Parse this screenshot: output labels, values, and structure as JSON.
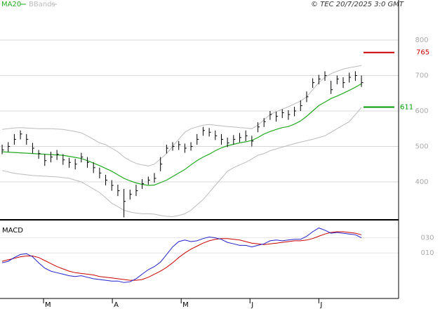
{
  "chart_data": {
    "type": "ohlc",
    "copyright": "© TEC 20/7/2025 3:0 GMT",
    "xlim": [
      -0.35,
      65.1
    ],
    "xticks": [
      {
        "value": 6.8,
        "label": "M"
      },
      {
        "value": 18.1,
        "label": "A"
      },
      {
        "value": 29.4,
        "label": "M"
      },
      {
        "value": 40.7,
        "label": "J"
      },
      {
        "value": 52.0,
        "label": "J"
      }
    ],
    "ylim": [
      293,
      913
    ],
    "yticks": [
      400,
      500,
      600,
      700,
      800
    ],
    "grid": true,
    "bar_color": "#000000",
    "high": [
      505,
      512,
      535,
      545,
      535,
      510,
      490,
      478,
      485,
      490,
      478,
      468,
      465,
      482,
      470,
      455,
      440,
      420,
      405,
      392,
      380,
      378,
      392,
      408,
      415,
      425,
      470,
      505,
      512,
      515,
      508,
      512,
      535,
      555,
      552,
      545,
      535,
      525,
      532,
      538,
      545,
      530,
      568,
      580,
      600,
      598,
      605,
      602,
      612,
      630,
      655,
      692,
      702,
      712,
      685,
      700,
      695,
      708,
      712,
      700
    ],
    "low": [
      478,
      485,
      505,
      520,
      505,
      480,
      465,
      445,
      455,
      462,
      448,
      440,
      435,
      455,
      440,
      425,
      410,
      390,
      375,
      360,
      300,
      350,
      360,
      380,
      392,
      398,
      430,
      480,
      488,
      490,
      482,
      488,
      505,
      530,
      528,
      518,
      505,
      498,
      505,
      512,
      515,
      500,
      540,
      555,
      575,
      570,
      580,
      575,
      585,
      600,
      625,
      665,
      675,
      685,
      648,
      675,
      665,
      680,
      685,
      668
    ],
    "close": [
      490,
      500,
      520,
      535,
      520,
      495,
      480,
      460,
      470,
      478,
      462,
      455,
      450,
      470,
      455,
      440,
      425,
      405,
      390,
      375,
      345,
      365,
      375,
      395,
      405,
      410,
      450,
      495,
      500,
      505,
      495,
      500,
      520,
      545,
      540,
      530,
      520,
      510,
      520,
      525,
      530,
      515,
      555,
      570,
      590,
      585,
      595,
      590,
      600,
      615,
      640,
      680,
      690,
      700,
      660,
      690,
      680,
      695,
      700,
      680
    ],
    "ma": {
      "name": "MA20",
      "color": "#22aa22",
      "values": [
        485,
        484,
        483,
        482,
        481,
        480,
        479,
        478,
        477,
        476,
        475,
        472,
        469,
        466,
        460,
        453,
        446,
        438,
        430,
        420,
        410,
        403,
        397,
        393,
        390,
        391,
        398,
        405,
        415,
        425,
        435,
        448,
        460,
        470,
        478,
        488,
        496,
        502,
        506,
        510,
        513,
        517,
        525,
        535,
        542,
        548,
        553,
        556,
        563,
        572,
        585,
        600,
        615,
        625,
        635,
        642,
        650,
        658,
        667,
        677
      ]
    },
    "bands": {
      "name": "BBands",
      "color": "#bbbbbb",
      "upper": [
        548,
        550,
        552,
        553,
        552,
        551,
        550,
        550,
        550,
        549,
        548,
        545,
        542,
        538,
        530,
        520,
        510,
        505,
        495,
        485,
        470,
        460,
        452,
        448,
        445,
        450,
        465,
        480,
        500,
        520,
        540,
        550,
        555,
        560,
        562,
        560,
        558,
        556,
        555,
        553,
        552,
        550,
        560,
        575,
        590,
        598,
        605,
        612,
        620,
        628,
        640,
        660,
        680,
        695,
        705,
        712,
        718,
        722,
        725,
        728
      ],
      "lower": [
        432,
        428,
        424,
        422,
        420,
        418,
        417,
        416,
        415,
        414,
        412,
        410,
        405,
        400,
        390,
        380,
        370,
        355,
        340,
        330,
        320,
        315,
        312,
        310,
        310,
        309,
        305,
        303,
        302,
        305,
        310,
        320,
        335,
        350,
        370,
        390,
        410,
        430,
        440,
        448,
        455,
        465,
        475,
        480,
        488,
        493,
        498,
        503,
        508,
        512,
        516,
        520,
        525,
        530,
        540,
        550,
        560,
        570,
        590,
        610
      ]
    },
    "levels": [
      {
        "value": 765,
        "color": "#cc0000"
      },
      {
        "value": 611,
        "color": "#009900"
      }
    ],
    "macd": {
      "title": "MACD",
      "ylim": [
        -50,
        50
      ],
      "yticks": [
        {
          "value": 30,
          "label": "030"
        },
        {
          "value": 10,
          "label": "010"
        }
      ],
      "macd_color": "#2222cc",
      "signal_color": "#cc0000",
      "macd_values": [
        -3,
        -1,
        4,
        8,
        9,
        5,
        -3,
        -10,
        -14,
        -16,
        -18,
        -20,
        -21,
        -20,
        -22,
        -24,
        -25,
        -26,
        -27,
        -27,
        -29,
        -28,
        -24,
        -18,
        -12,
        -8,
        -2,
        8,
        18,
        25,
        27,
        25,
        26,
        29,
        31,
        30,
        28,
        24,
        22,
        20,
        20,
        18,
        20,
        22,
        26,
        27,
        26,
        27,
        28,
        28,
        32,
        38,
        43,
        40,
        36,
        37,
        36,
        35,
        34,
        30
      ],
      "signal_values": [
        -1,
        1,
        3,
        5,
        6,
        6,
        4,
        0,
        -4,
        -8,
        -11,
        -14,
        -16,
        -17,
        -18,
        -19,
        -21,
        -22,
        -23,
        -24,
        -25,
        -26,
        -26,
        -25,
        -22,
        -18,
        -14,
        -9,
        -3,
        4,
        10,
        15,
        19,
        23,
        26,
        28,
        29,
        29,
        28,
        27,
        25,
        23,
        22,
        21,
        22,
        23,
        24,
        25,
        26,
        26,
        27,
        29,
        32,
        35,
        37,
        38,
        38,
        37,
        36,
        34
      ]
    }
  }
}
